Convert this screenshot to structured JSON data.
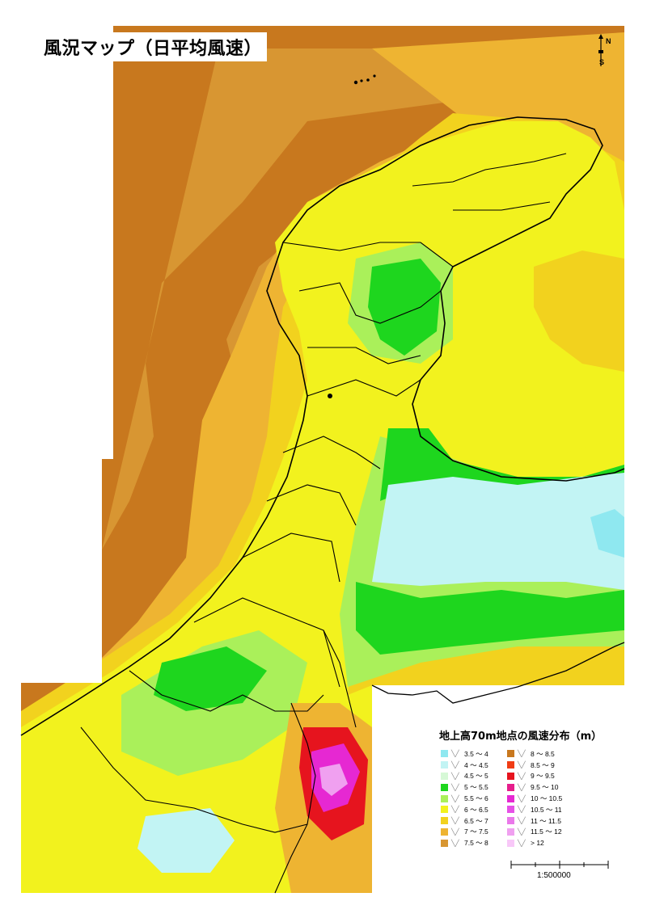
{
  "map": {
    "title": "風況マップ（日平均風速）",
    "north_label": "N",
    "south_label": "S",
    "scale_label": "1:500000"
  },
  "legend": {
    "title": "地上高70m地点の風速分布（m）",
    "items": [
      {
        "label": "3.5 〜 4",
        "color": "#8fe8f0"
      },
      {
        "label": "4 〜 4.5",
        "color": "#c2f4f4"
      },
      {
        "label": "4.5 〜 5",
        "color": "#d6f8d6"
      },
      {
        "label": "5 〜 5.5",
        "color": "#1ed61e"
      },
      {
        "label": "5.5 〜 6",
        "color": "#aaf05a"
      },
      {
        "label": "6 〜 6.5",
        "color": "#f2f21e"
      },
      {
        "label": "6.5 〜 7",
        "color": "#f2d21e"
      },
      {
        "label": "7 〜 7.5",
        "color": "#eeb432"
      },
      {
        "label": "7.5 〜 8",
        "color": "#d89632"
      },
      {
        "label": "8 〜 8.5",
        "color": "#c8781e"
      },
      {
        "label": "8.5 〜 9",
        "color": "#f03c14"
      },
      {
        "label": "9 〜 9.5",
        "color": "#e6141e"
      },
      {
        "label": "9.5 〜 10",
        "color": "#e61e8c"
      },
      {
        "label": "10 〜 10.5",
        "color": "#e628d2"
      },
      {
        "label": "10.5 〜 11",
        "color": "#e650e6"
      },
      {
        "label": "11 〜 11.5",
        "color": "#ea78ea"
      },
      {
        "label": "11.5 〜 12",
        "color": "#f0a0f0"
      },
      {
        "label": "> 12",
        "color": "#f8c8f8"
      }
    ]
  },
  "colors": {
    "sea_far": "#c8781e",
    "sea_mid": "#d89632",
    "sea_near": "#eeb432",
    "coast": "#f2d21e",
    "land_yellow": "#f2f21e",
    "land_green": "#1ed61e",
    "land_lightgreen": "#aaf05a",
    "calm": "#c2f4f4",
    "calm_deep": "#8fe8f0",
    "mountain_red": "#e6141e",
    "mountain_magenta": "#e628d2",
    "border": "#000000"
  }
}
